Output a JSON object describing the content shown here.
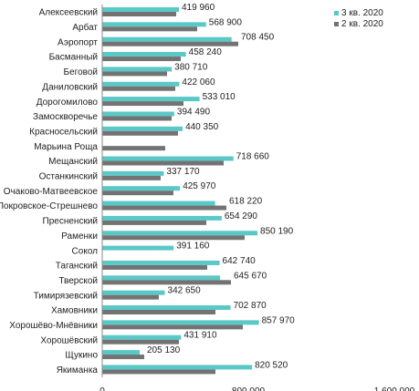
{
  "chart_data": {
    "type": "bar",
    "orientation": "horizontal",
    "title": "",
    "xlabel": "",
    "ylabel": "",
    "xlim": [
      0,
      1600000
    ],
    "x_ticks": [
      0,
      800000,
      1600000
    ],
    "x_tick_labels": [
      "0",
      "800 000",
      "1 600 000"
    ],
    "grid": false,
    "legend_position": "top-right",
    "categories": [
      "Алексеевский",
      "Арбат",
      "Аэропорт",
      "Басманный",
      "Беговой",
      "Даниловский",
      "Дорогомилово",
      "Замоскворечье",
      "Красносельский",
      "Марьина Роща",
      "Мещанский",
      "Останкинский",
      "Очаково-Матвеевское",
      "Покровское-Стрешнево",
      "Пресненский",
      "Раменки",
      "Сокол",
      "Таганский",
      "Тверской",
      "Тимирязевский",
      "Хамовники",
      "Хорошёво-Мнёвники",
      "Хорошёвский",
      "Щукино",
      "Якиманка"
    ],
    "series": [
      {
        "name": "3 кв. 2020",
        "color": "#5bc8c8",
        "values": [
          419960,
          568900,
          708450,
          458240,
          380710,
          422060,
          533010,
          394490,
          440350,
          null,
          718660,
          337170,
          425970,
          618220,
          654290,
          850190,
          391160,
          642740,
          645670,
          342650,
          702870,
          857970,
          431910,
          205130,
          820520
        ],
        "value_labels": [
          "419 960",
          "568 900",
          "708 450",
          "458 240",
          "380 710",
          "422 060",
          "533 010",
          "394 490",
          "440 350",
          "",
          "718 660",
          "337 170",
          "425 970",
          "618 220",
          "654 290",
          "850 190",
          "391 160",
          "642 740",
          "645 670",
          "342 650",
          "702 870",
          "857 970",
          "431 910",
          "205 130",
          "820 520"
        ]
      },
      {
        "name": "2 кв. 2020",
        "color": "#737373",
        "values": [
          405000,
          520000,
          745000,
          430000,
          355000,
          400000,
          445000,
          380000,
          415000,
          345000,
          665000,
          320000,
          390000,
          680000,
          570000,
          780000,
          null,
          575000,
          705000,
          310000,
          620000,
          770000,
          420000,
          230000,
          620000
        ]
      }
    ]
  }
}
